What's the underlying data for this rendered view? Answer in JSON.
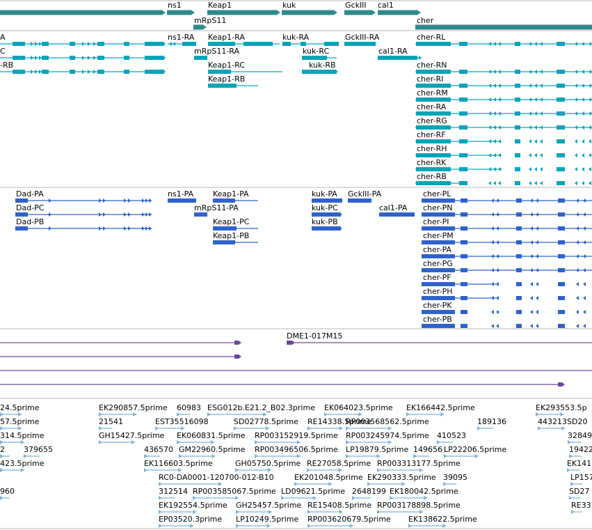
{
  "colors": {
    "gene_track": "#2e8b8b",
    "transcript": "#0aa3b8",
    "protein": "#2f63c9",
    "clone": "#6a4a9a",
    "est": "#7fb2d8",
    "divider": "#b8b8b8"
  },
  "tracks": {
    "genes": [
      {
        "label": "ns1"
      },
      {
        "label": "Keap1"
      },
      {
        "label": "kuk"
      },
      {
        "label": "GckIII"
      },
      {
        "label": "cal1"
      },
      {
        "label": "mRpS11"
      },
      {
        "label": "cher"
      }
    ],
    "transcripts": [
      {
        "label": "A"
      },
      {
        "label": "C"
      },
      {
        "label": "-RB"
      },
      {
        "label": "ns1-RA"
      },
      {
        "label": "Keap1-RA"
      },
      {
        "label": "kuk-RA"
      },
      {
        "label": "GckIII-RA"
      },
      {
        "label": "mRpS11-RA"
      },
      {
        "label": "kuk-RC"
      },
      {
        "label": "cal1-RA"
      },
      {
        "label": "Keap1-RC"
      },
      {
        "label": "kuk-RB"
      },
      {
        "label": "Keap1-RB"
      },
      {
        "label": "cher-RL"
      },
      {
        "label": "cher-RN"
      },
      {
        "label": "cher-RI"
      },
      {
        "label": "cher-RM"
      },
      {
        "label": "cher-RA"
      },
      {
        "label": "cher-RG"
      },
      {
        "label": "cher-RF"
      },
      {
        "label": "cher-RH"
      },
      {
        "label": "cher-RK"
      },
      {
        "label": "cher-RB"
      }
    ],
    "proteins": [
      {
        "label": "Dad-PA"
      },
      {
        "label": "Dad-PC"
      },
      {
        "label": "Dad-PB"
      },
      {
        "label": "ns1-PA"
      },
      {
        "label": "Keap1-PA"
      },
      {
        "label": "mRpS11-PA"
      },
      {
        "label": "Keap1-PC"
      },
      {
        "label": "Keap1-PB"
      },
      {
        "label": "kuk-PA"
      },
      {
        "label": "GckIII-PA"
      },
      {
        "label": "kuk-PC"
      },
      {
        "label": "cal1-PA"
      },
      {
        "label": "kuk-PB"
      },
      {
        "label": "cher-PL"
      },
      {
        "label": "cher-PN"
      },
      {
        "label": "cher-PI"
      },
      {
        "label": "cher-PM"
      },
      {
        "label": "cher-PA"
      },
      {
        "label": "cher-PG"
      },
      {
        "label": "cher-PF"
      },
      {
        "label": "cher-PH"
      },
      {
        "label": "cher-PK"
      },
      {
        "label": "cher-PB"
      }
    ],
    "clones": [
      {
        "label": "DME1-017M15"
      }
    ],
    "ests": [
      {
        "label": "24.5prime"
      },
      {
        "label": "EK290857.5prime"
      },
      {
        "label": "60983"
      },
      {
        "label": "ESG012b.E21.2_B02.3prime"
      },
      {
        "label": "EK064023.5prime"
      },
      {
        "label": "EK166442.5prime"
      },
      {
        "label": "EK293553.5p"
      },
      {
        "label": "57.5prime"
      },
      {
        "label": "21541"
      },
      {
        "label": "EST35516098"
      },
      {
        "label": "SD02778.5prime"
      },
      {
        "label": "RE14338.5prime"
      },
      {
        "label": "RP003568562.5prime"
      },
      {
        "label": "189136"
      },
      {
        "label": "443213SD20"
      },
      {
        "label": "314.5prime"
      },
      {
        "label": "GH15427.5prime"
      },
      {
        "label": "EK060831.5prime"
      },
      {
        "label": "RP003152919.5prime"
      },
      {
        "label": "RP003245974.5prime"
      },
      {
        "label": "410523"
      },
      {
        "label": "32849"
      },
      {
        "label": "2"
      },
      {
        "label": "379655"
      },
      {
        "label": "436570"
      },
      {
        "label": "GM22960.5prime"
      },
      {
        "label": "RP003496506.5prime"
      },
      {
        "label": "LP19879.5prime"
      },
      {
        "label": "149656"
      },
      {
        "label": "LP22206.5prime"
      },
      {
        "label": "19422"
      },
      {
        "label": "423.5prime"
      },
      {
        "label": "EK116603.5prime"
      },
      {
        "label": "GH05750.5prime"
      },
      {
        "label": "RE27058.5prime"
      },
      {
        "label": "RP003313177.5prime"
      },
      {
        "label": "EK141"
      },
      {
        "label": "RC0-DA0001-120700-012-B10"
      },
      {
        "label": "EK201048.5prime"
      },
      {
        "label": "EK290333.5prime"
      },
      {
        "label": "39095"
      },
      {
        "label": "LP157"
      },
      {
        "label": "960"
      },
      {
        "label": "312514"
      },
      {
        "label": "RP003585067.5prime"
      },
      {
        "label": "LD09621.5prime"
      },
      {
        "label": "2648199"
      },
      {
        "label": "EK180042.5prime"
      },
      {
        "label": "SD27"
      },
      {
        "label": "EK192554.5prime"
      },
      {
        "label": "GH25457.5prime"
      },
      {
        "label": "RE15408.5prime"
      },
      {
        "label": "RP003178898.5prime"
      },
      {
        "label": "RE33"
      },
      {
        "label": "EP03520.3prime"
      },
      {
        "label": "LP10249.5prime"
      },
      {
        "label": "RP003620679.5prime"
      },
      {
        "label": "EK138622.5prime"
      }
    ]
  }
}
